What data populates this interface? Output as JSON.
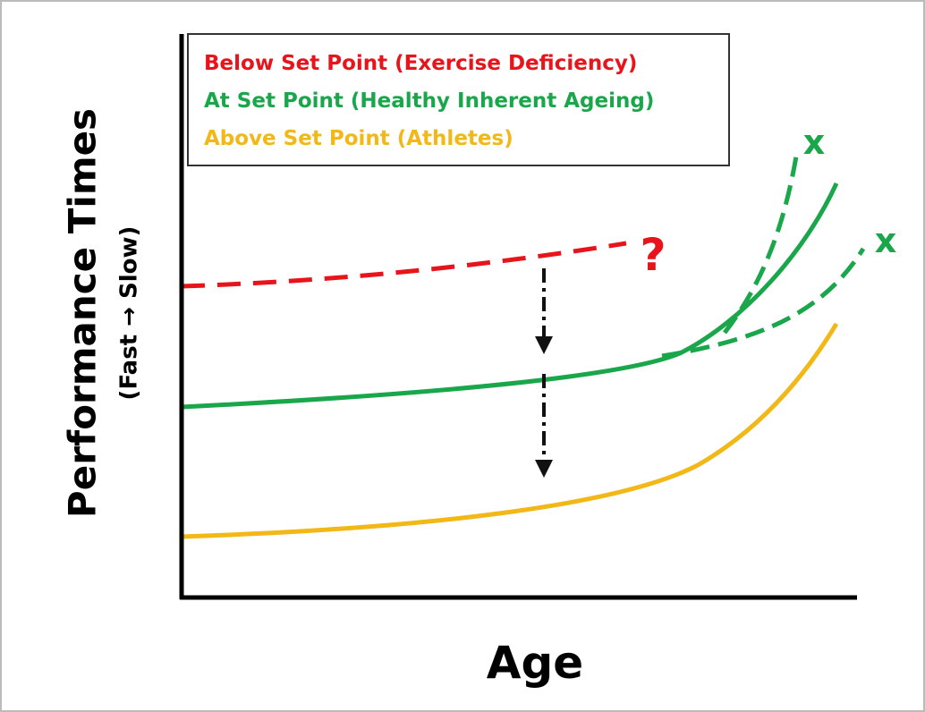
{
  "legend": {
    "items": [
      {
        "label": "Below Set Point (Exercise Deficiency)",
        "color": "#e8141c"
      },
      {
        "label": "At Set Point (Healthy Inherent Ageing)",
        "color": "#1aa64a"
      },
      {
        "label": "Above Set Point (Athletes)",
        "color": "#f2b817"
      }
    ]
  },
  "y_axis": {
    "label": "Performance Times",
    "sublabel": "(Fast → Slow)"
  },
  "x_axis": {
    "label": "Age"
  },
  "annotations": {
    "question": "?",
    "end_upper": "x",
    "end_lower": "x"
  }
}
